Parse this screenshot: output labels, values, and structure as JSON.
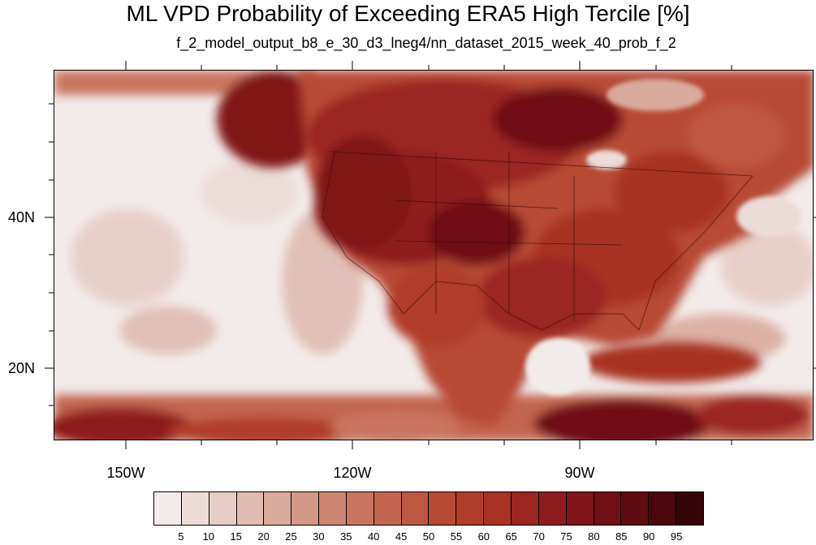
{
  "title": "ML VPD Probability of Exceeding ERA5 High Tercile [%]",
  "subtitle": "f_2_model_output_b8_e_30_d3_lneg4/nn_dataset_2015_week_40_prob_f_2",
  "map": {
    "lat_labels": [
      "40N",
      "20N"
    ],
    "lon_labels": [
      "150W",
      "120W",
      "90W"
    ]
  },
  "colorbar": {
    "labels": [
      "5",
      "10",
      "15",
      "20",
      "25",
      "30",
      "35",
      "40",
      "45",
      "50",
      "55",
      "60",
      "65",
      "70",
      "75",
      "80",
      "85",
      "90",
      "95"
    ],
    "colors": [
      "#f2ebea",
      "#ecdcd8",
      "#e6cdc6",
      "#e0bcb2",
      "#daaa9c",
      "#d49886",
      "#ce8672",
      "#c9755f",
      "#c4654f",
      "#bf5640",
      "#b84a34",
      "#b13e2b",
      "#a83224",
      "#9c2620",
      "#8f1c1d",
      "#811419",
      "#710f16",
      "#5f0b12",
      "#4a070e",
      "#36050a"
    ]
  }
}
